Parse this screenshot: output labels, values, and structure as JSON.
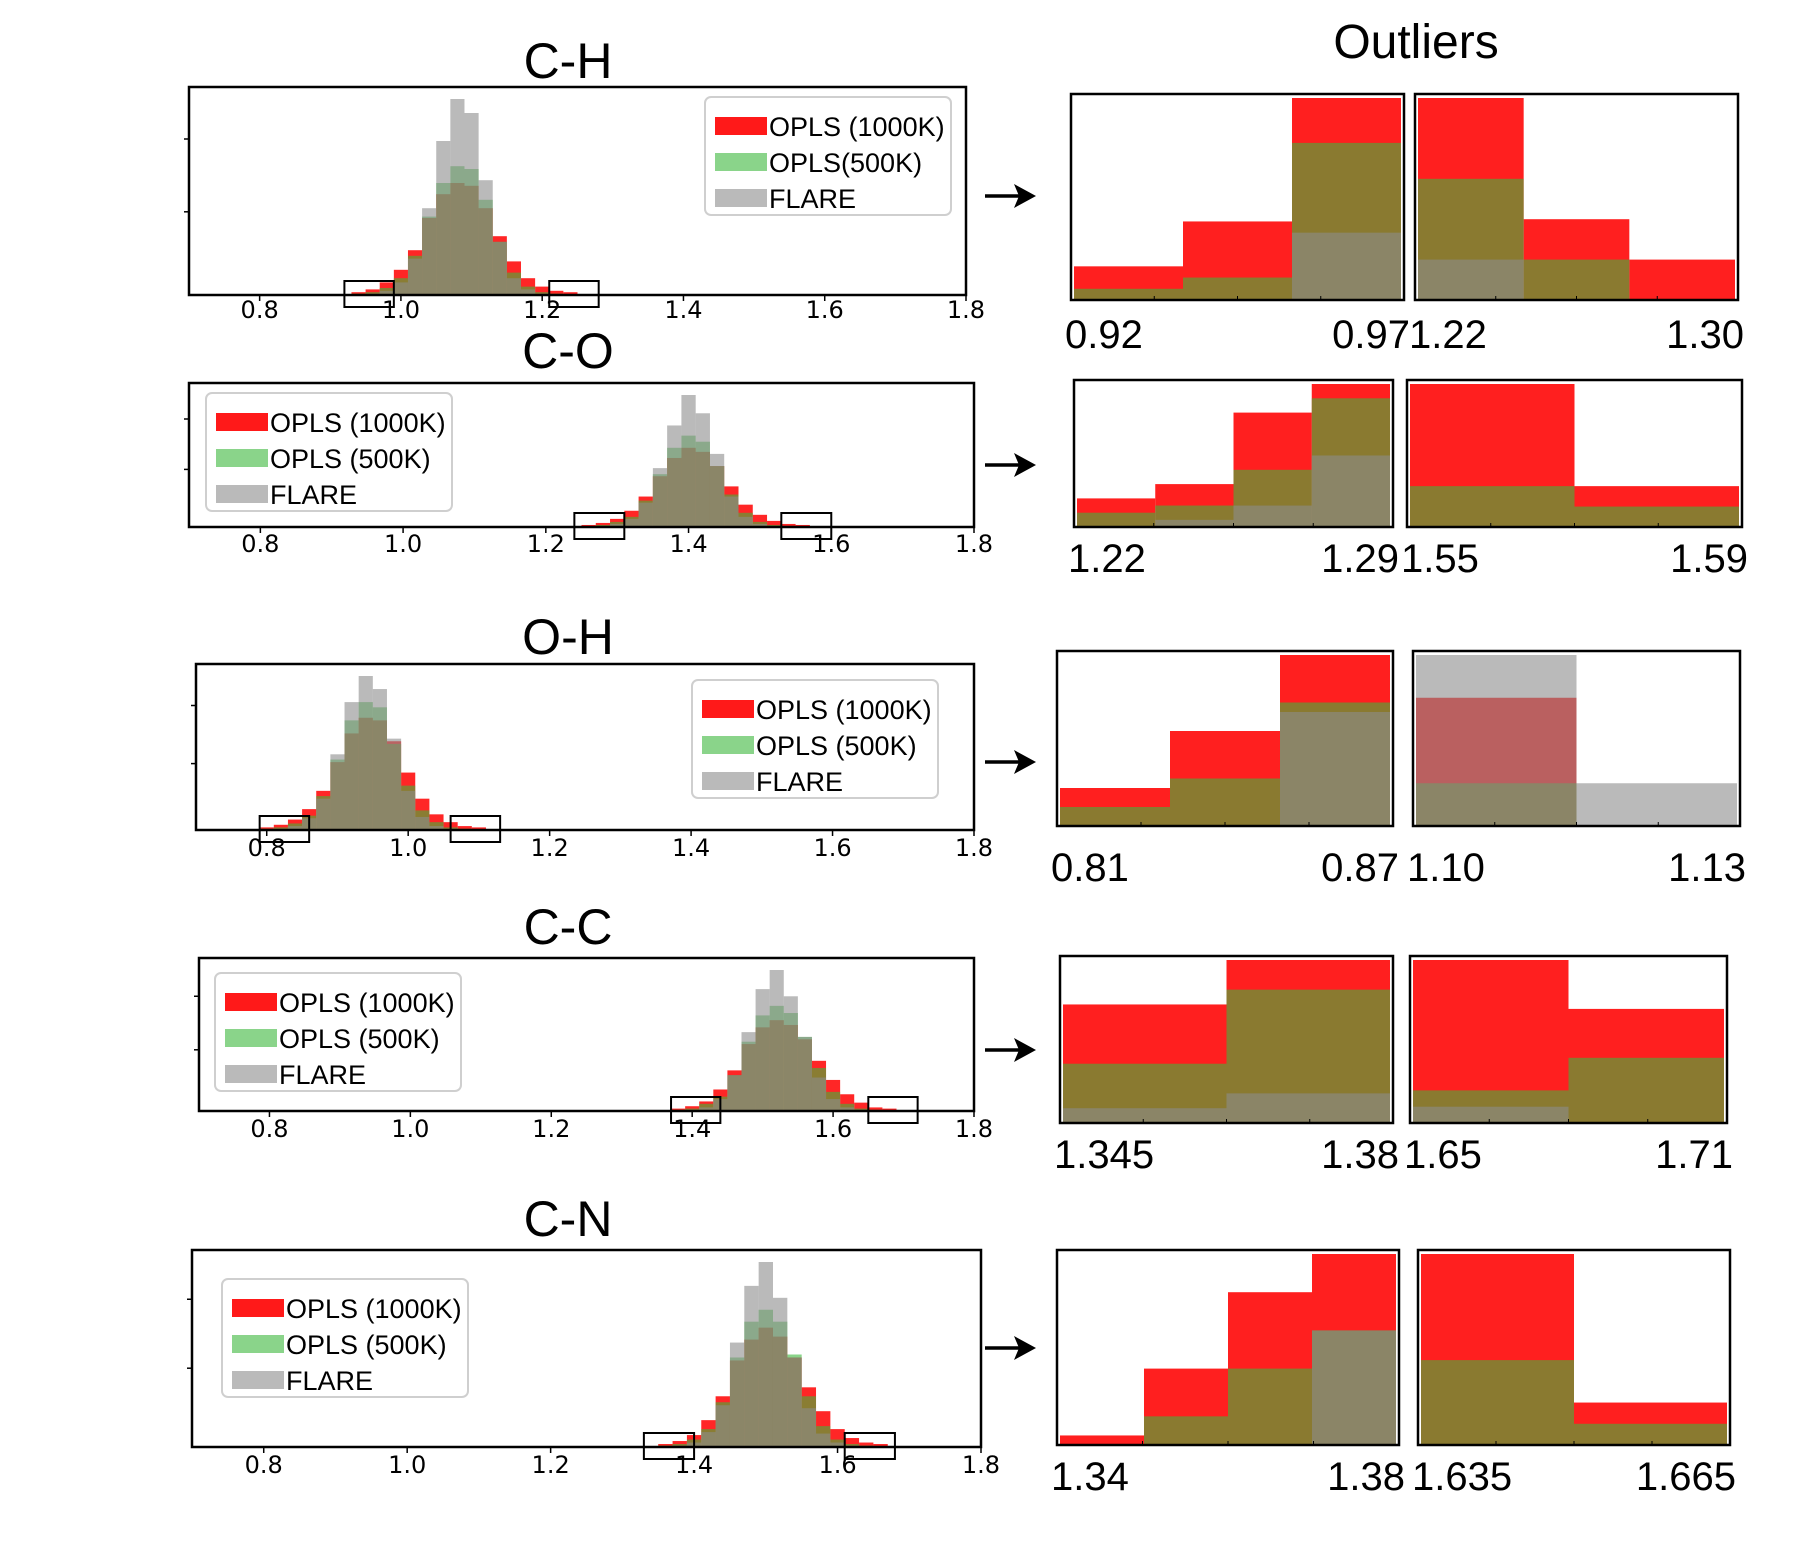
{
  "figure_title": "Outliers",
  "colors": {
    "opls1000": "#ff0000",
    "opls500": "#3cb83c",
    "flare": "#8c8c8c",
    "overlap": "#8b6914"
  },
  "chart_data": [
    {
      "type": "bar",
      "title": "C-H",
      "x": [
        0.94,
        0.96,
        0.98,
        1.0,
        1.02,
        1.04,
        1.06,
        1.08,
        1.1,
        1.12,
        1.14,
        1.16,
        1.18,
        1.2,
        1.22,
        1.24
      ],
      "series": [
        {
          "name": "OPLS (1000K)",
          "values": [
            2,
            4,
            9,
            18,
            32,
            55,
            72,
            80,
            78,
            62,
            42,
            24,
            12,
            6,
            3,
            2
          ]
        },
        {
          "name": "OPLS(500K)",
          "values": [
            1,
            2,
            5,
            12,
            28,
            56,
            80,
            92,
            90,
            68,
            38,
            16,
            6,
            2,
            1,
            0
          ]
        },
        {
          "name": "FLARE",
          "values": [
            0,
            1,
            3,
            9,
            26,
            62,
            110,
            140,
            130,
            82,
            38,
            12,
            4,
            1,
            0,
            0
          ]
        }
      ],
      "xlim": [
        0.7,
        1.8
      ],
      "xticks": [
        "0.8",
        "1.0",
        "1.2",
        "1.4",
        "1.6",
        "1.8"
      ],
      "outlier_boxes": [
        [
          0.92,
          0.99
        ],
        [
          1.21,
          1.28
        ]
      ],
      "legend_position": "top-right",
      "zoom_left": {
        "xticks": [
          "0.92",
          "0.97"
        ],
        "categories": [
          "0.92-0.945",
          "0.945-0.97",
          "0.97-0.99"
        ],
        "series": [
          {
            "name": "OPLS (1000K)",
            "values": [
              3,
              7,
              18
            ]
          },
          {
            "name": "OPLS(500K)",
            "values": [
              1,
              2,
              14
            ]
          },
          {
            "name": "FLARE",
            "values": [
              0,
              0,
              6
            ]
          }
        ]
      },
      "zoom_right": {
        "xticks": [
          "1.22",
          "1.30"
        ],
        "categories": [
          "1.22-1.235",
          "1.235-1.265",
          "1.265-1.295"
        ],
        "series": [
          {
            "name": "OPLS (1000K)",
            "values": [
              5,
              2,
              1
            ]
          },
          {
            "name": "OPLS(500K)",
            "values": [
              3,
              1,
              0
            ]
          },
          {
            "name": "FLARE",
            "values": [
              1,
              0,
              0
            ]
          }
        ]
      }
    },
    {
      "type": "bar",
      "title": "C-O",
      "x": [
        1.26,
        1.28,
        1.3,
        1.32,
        1.34,
        1.36,
        1.38,
        1.4,
        1.42,
        1.44,
        1.46,
        1.48,
        1.5,
        1.52,
        1.54,
        1.56
      ],
      "series": [
        {
          "name": "OPLS (1000K)",
          "values": [
            2,
            4,
            8,
            16,
            30,
            50,
            68,
            78,
            74,
            60,
            40,
            22,
            12,
            6,
            3,
            2
          ]
        },
        {
          "name": "OPLS (500K)",
          "values": [
            1,
            2,
            5,
            10,
            26,
            52,
            78,
            90,
            84,
            60,
            32,
            14,
            5,
            2,
            1,
            0
          ]
        },
        {
          "name": "FLARE",
          "values": [
            0,
            1,
            3,
            8,
            24,
            58,
            100,
            130,
            112,
            72,
            30,
            10,
            3,
            1,
            0,
            0
          ]
        }
      ],
      "xlim": [
        0.7,
        1.8
      ],
      "xticks": [
        "0.8",
        "1.0",
        "1.2",
        "1.4",
        "1.6",
        "1.8"
      ],
      "outlier_boxes": [
        [
          1.24,
          1.31
        ],
        [
          1.53,
          1.6
        ]
      ],
      "legend_position": "top-left",
      "zoom_left": {
        "xticks": [
          "1.22",
          "1.29"
        ],
        "categories": [
          "1.22-1.235",
          "1.235-1.255",
          "1.255-1.275",
          "1.275-1.29"
        ],
        "series": [
          {
            "name": "OPLS (1000K)",
            "values": [
              4,
              6,
              16,
              20
            ]
          },
          {
            "name": "OPLS (500K)",
            "values": [
              2,
              3,
              8,
              18
            ]
          },
          {
            "name": "FLARE",
            "values": [
              0,
              1,
              3,
              10
            ]
          }
        ]
      },
      "zoom_right": {
        "xticks": [
          "1.55",
          "1.59"
        ],
        "categories": [
          "1.55-1.565",
          "1.565-1.59"
        ],
        "series": [
          {
            "name": "OPLS (1000K)",
            "values": [
              7,
              2
            ]
          },
          {
            "name": "OPLS (500K)",
            "values": [
              2,
              1
            ]
          },
          {
            "name": "FLARE",
            "values": [
              0,
              0
            ]
          }
        ]
      }
    },
    {
      "type": "bar",
      "title": "O-H",
      "x": [
        0.8,
        0.82,
        0.84,
        0.86,
        0.88,
        0.9,
        0.92,
        0.94,
        0.96,
        0.98,
        1.0,
        1.02,
        1.04,
        1.06,
        1.08,
        1.1
      ],
      "series": [
        {
          "name": "OPLS (1000K)",
          "values": [
            2,
            4,
            8,
            16,
            30,
            52,
            74,
            86,
            84,
            68,
            44,
            24,
            12,
            6,
            3,
            2
          ]
        },
        {
          "name": "OPLS (500K)",
          "values": [
            1,
            2,
            5,
            11,
            26,
            54,
            84,
            98,
            94,
            66,
            34,
            15,
            6,
            2,
            1,
            0
          ]
        },
        {
          "name": "FLARE",
          "values": [
            0,
            1,
            3,
            9,
            24,
            58,
            98,
            118,
            108,
            70,
            30,
            10,
            3,
            1,
            0,
            0
          ]
        }
      ],
      "xlim": [
        0.7,
        1.8
      ],
      "xticks": [
        "0.8",
        "1.0",
        "1.2",
        "1.4",
        "1.6",
        "1.8"
      ],
      "outlier_boxes": [
        [
          0.79,
          0.86
        ],
        [
          1.06,
          1.13
        ]
      ],
      "legend_position": "top-right",
      "zoom_left": {
        "xticks": [
          "0.81",
          "0.87"
        ],
        "categories": [
          "0.81-0.83",
          "0.83-0.85",
          "0.85-0.87"
        ],
        "series": [
          {
            "name": "OPLS (1000K)",
            "values": [
              4,
              10,
              18
            ]
          },
          {
            "name": "OPLS (500K)",
            "values": [
              2,
              5,
              13
            ]
          },
          {
            "name": "FLARE",
            "values": [
              0,
              0,
              12
            ]
          }
        ]
      },
      "zoom_right": {
        "xticks": [
          "1.10",
          "1.13"
        ],
        "categories": [
          "1.10-1.115",
          "1.115-1.13"
        ],
        "series": [
          {
            "name": "OPLS (1000K)",
            "values": [
              3,
              0
            ]
          },
          {
            "name": "OPLS (500K)",
            "values": [
              1,
              0
            ]
          },
          {
            "name": "FLARE",
            "values": [
              4,
              1
            ]
          }
        ]
      }
    },
    {
      "type": "bar",
      "title": "C-C",
      "x": [
        1.38,
        1.4,
        1.42,
        1.44,
        1.46,
        1.48,
        1.5,
        1.52,
        1.54,
        1.56,
        1.58,
        1.6,
        1.62,
        1.64,
        1.66,
        1.68
      ],
      "series": [
        {
          "name": "OPLS (1000K)",
          "values": [
            2,
            4,
            8,
            18,
            34,
            56,
            70,
            76,
            72,
            60,
            42,
            26,
            14,
            7,
            3,
            2
          ]
        },
        {
          "name": "OPLS (500K)",
          "values": [
            1,
            2,
            6,
            12,
            30,
            58,
            80,
            88,
            82,
            62,
            36,
            16,
            6,
            2,
            1,
            0
          ]
        },
        {
          "name": "FLARE",
          "values": [
            0,
            1,
            3,
            10,
            30,
            66,
            102,
            118,
            96,
            62,
            28,
            10,
            3,
            1,
            0,
            0
          ]
        }
      ],
      "xlim": [
        0.7,
        1.8
      ],
      "xticks": [
        "0.8",
        "1.0",
        "1.2",
        "1.4",
        "1.6",
        "1.8"
      ],
      "outlier_boxes": [
        [
          1.37,
          1.44
        ],
        [
          1.65,
          1.72
        ]
      ],
      "legend_position": "top-left",
      "zoom_left": {
        "xticks": [
          "1.345",
          "1.38"
        ],
        "categories": [
          "1.345-1.36",
          "1.36-1.38"
        ],
        "series": [
          {
            "name": "OPLS (1000K)",
            "values": [
              8,
              11
            ]
          },
          {
            "name": "OPLS (500K)",
            "values": [
              4,
              9
            ]
          },
          {
            "name": "FLARE",
            "values": [
              1,
              2
            ]
          }
        ]
      },
      "zoom_right": {
        "xticks": [
          "1.65",
          "1.71"
        ],
        "categories": [
          "1.65-1.66",
          "1.66-1.71"
        ],
        "series": [
          {
            "name": "OPLS (1000K)",
            "values": [
              10,
              7
            ]
          },
          {
            "name": "OPLS (500K)",
            "values": [
              2,
              4
            ]
          },
          {
            "name": "FLARE",
            "values": [
              1,
              0
            ]
          }
        ]
      }
    },
    {
      "type": "bar",
      "title": "C-N",
      "x": [
        1.36,
        1.38,
        1.4,
        1.42,
        1.44,
        1.46,
        1.48,
        1.5,
        1.52,
        1.54,
        1.56,
        1.58,
        1.6,
        1.62,
        1.64,
        1.66
      ],
      "series": [
        {
          "name": "OPLS (1000K)",
          "values": [
            2,
            4,
            8,
            18,
            34,
            58,
            72,
            80,
            74,
            60,
            40,
            24,
            12,
            6,
            3,
            2
          ]
        },
        {
          "name": "OPLS (500K)",
          "values": [
            1,
            2,
            5,
            12,
            30,
            60,
            84,
            92,
            84,
            62,
            34,
            14,
            5,
            2,
            1,
            0
          ]
        },
        {
          "name": "FLARE",
          "values": [
            0,
            1,
            3,
            10,
            28,
            70,
            108,
            124,
            100,
            60,
            26,
            9,
            3,
            1,
            0,
            0
          ]
        }
      ],
      "xlim": [
        0.7,
        1.8
      ],
      "xticks": [
        "0.8",
        "1.0",
        "1.2",
        "1.4",
        "1.6",
        "1.8"
      ],
      "outlier_boxes": [
        [
          1.33,
          1.4
        ],
        [
          1.61,
          1.68
        ]
      ],
      "legend_position": "left",
      "zoom_left": {
        "xticks": [
          "1.34",
          "1.38"
        ],
        "categories": [
          "1.34-1.345",
          "1.345-1.36",
          "1.36-1.375",
          "1.375-1.38"
        ],
        "series": [
          {
            "name": "OPLS (1000K)",
            "values": [
              1,
              8,
              16,
              20
            ]
          },
          {
            "name": "OPLS (500K)",
            "values": [
              0,
              3,
              8,
              12
            ]
          },
          {
            "name": "FLARE",
            "values": [
              0,
              0,
              0,
              12
            ]
          }
        ]
      },
      "zoom_right": {
        "xticks": [
          "1.635",
          "1.665"
        ],
        "categories": [
          "1.635-1.65",
          "1.65-1.665"
        ],
        "series": [
          {
            "name": "OPLS (1000K)",
            "values": [
              9,
              2
            ]
          },
          {
            "name": "OPLS (500K)",
            "values": [
              4,
              1
            ]
          },
          {
            "name": "FLARE",
            "values": [
              0,
              0
            ]
          }
        ]
      }
    }
  ]
}
